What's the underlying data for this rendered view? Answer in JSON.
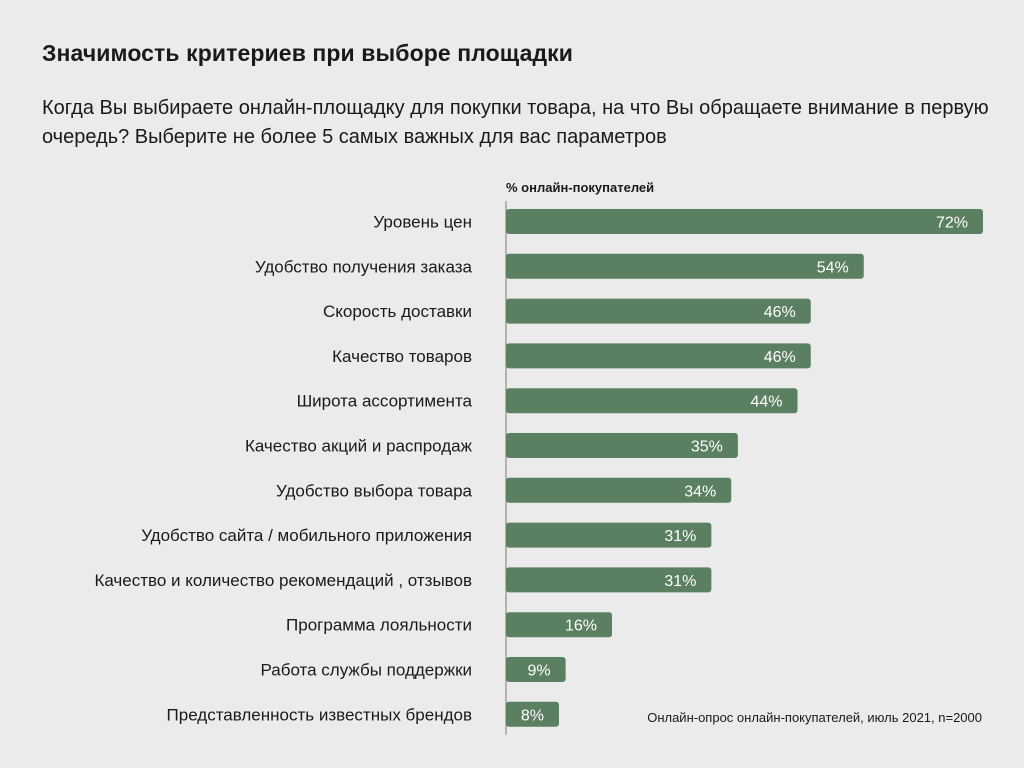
{
  "header": {
    "title": "Значимость критериев при выборе площадки",
    "subtitle": "Когда Вы выбираете онлайн-площадку для покупки товара, на что Вы обращаете внимание в первую очередь? Выберите не более 5 самых важных для вас параметров"
  },
  "footer": {
    "source": "Онлайн-опрос онлайн-покупателей, июль 2021, n=2000"
  },
  "chart_data": {
    "type": "bar",
    "orientation": "horizontal",
    "title": "Значимость критериев при выборе площадки",
    "xlabel": "% онлайн-покупателей",
    "ylabel": "",
    "xlim": [
      0,
      72
    ],
    "grid": false,
    "legend": "none",
    "bar_color": "#5a7f61",
    "value_suffix": "%",
    "categories": [
      "Уровень цен",
      "Удобство получения заказа",
      "Скорость доставки",
      "Качество товаров",
      "Широта ассортимента",
      "Качество акций и распродаж",
      "Удобство выбора товара",
      "Удобство сайта / мобильного приложения",
      "Качество и количество рекомендаций , отзывов",
      "Программа лояльности",
      "Работа службы поддержки",
      "Представленность известных брендов"
    ],
    "values": [
      72,
      54,
      46,
      46,
      44,
      35,
      34,
      31,
      31,
      16,
      9,
      8
    ]
  }
}
